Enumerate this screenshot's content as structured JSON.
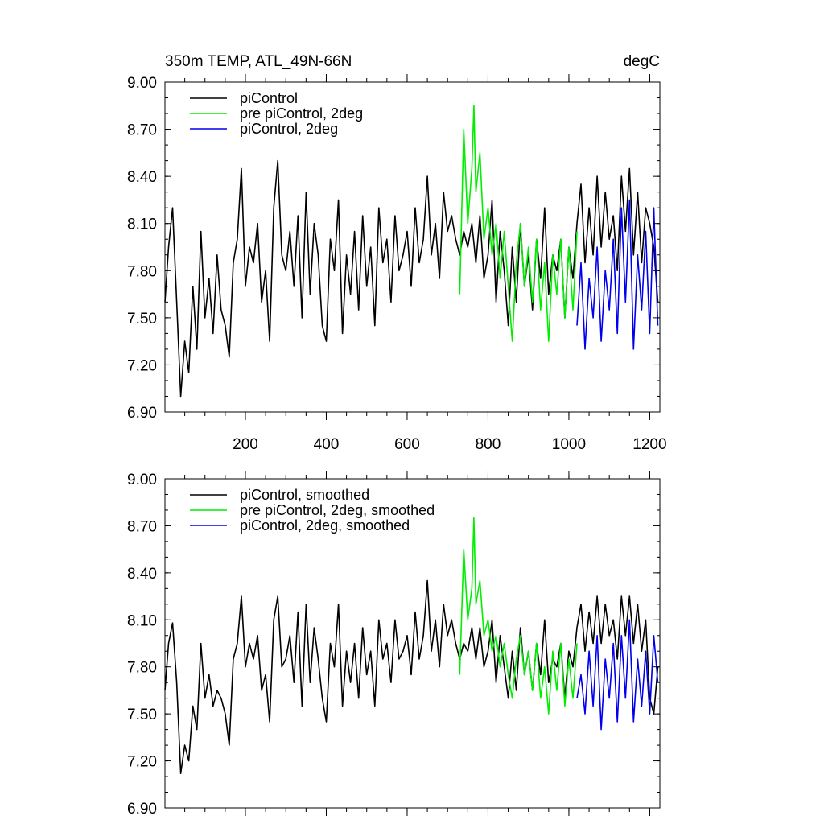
{
  "header": {
    "title": "350m TEMP, ATL_49N-66N",
    "units": "degC"
  },
  "chart_data": [
    {
      "type": "line",
      "title": "350m TEMP, ATL_49N-66N",
      "units": "degC",
      "xlim": [
        1,
        1225
      ],
      "ylim": [
        6.9,
        9.0
      ],
      "xticks": [
        200,
        400,
        600,
        800,
        1000,
        1200
      ],
      "xtick_labels": [
        "200",
        "400",
        "600",
        "800",
        "1000",
        "1200"
      ],
      "yticks": [
        6.9,
        7.2,
        7.5,
        7.8,
        8.1,
        8.4,
        8.7,
        9.0
      ],
      "ytick_labels": [
        "6.90",
        "7.20",
        "7.50",
        "7.80",
        "8.10",
        "8.40",
        "8.70",
        "9.00"
      ],
      "legend_position": "top-left",
      "series": [
        {
          "name": "piControl",
          "color": "#000000",
          "x": [
            1,
            10,
            20,
            30,
            40,
            50,
            60,
            70,
            80,
            90,
            100,
            110,
            120,
            130,
            140,
            150,
            160,
            170,
            180,
            190,
            200,
            210,
            220,
            230,
            240,
            250,
            260,
            270,
            280,
            290,
            300,
            310,
            320,
            330,
            340,
            350,
            360,
            370,
            380,
            390,
            400,
            410,
            420,
            430,
            440,
            450,
            460,
            470,
            480,
            490,
            500,
            510,
            520,
            530,
            540,
            550,
            560,
            570,
            580,
            590,
            600,
            610,
            620,
            630,
            640,
            650,
            660,
            670,
            680,
            690,
            700,
            710,
            720,
            730,
            740,
            750,
            760,
            770,
            780,
            790,
            800,
            810,
            820,
            830,
            840,
            850,
            860,
            870,
            880,
            890,
            900,
            910,
            920,
            930,
            940,
            950,
            960,
            970,
            980,
            990,
            1000,
            1010,
            1020,
            1030,
            1040,
            1050,
            1060,
            1070,
            1080,
            1090,
            1100,
            1110,
            1120,
            1130,
            1140,
            1150,
            1160,
            1170,
            1180,
            1190,
            1200,
            1210,
            1220
          ],
          "y": [
            7.6,
            7.95,
            8.2,
            7.6,
            7.0,
            7.35,
            7.15,
            7.7,
            7.3,
            8.05,
            7.5,
            7.75,
            7.4,
            7.9,
            7.55,
            7.45,
            7.25,
            7.85,
            8.0,
            8.45,
            7.7,
            7.95,
            7.85,
            8.1,
            7.6,
            7.8,
            7.35,
            8.2,
            8.5,
            7.9,
            7.8,
            8.05,
            7.7,
            8.15,
            7.5,
            8.3,
            7.65,
            8.1,
            7.9,
            7.45,
            7.35,
            8.0,
            7.8,
            8.25,
            7.4,
            7.9,
            7.65,
            8.05,
            7.55,
            8.15,
            7.7,
            7.95,
            7.45,
            8.2,
            7.85,
            8.0,
            7.6,
            8.15,
            7.8,
            7.9,
            8.05,
            7.7,
            8.2,
            7.85,
            8.0,
            8.4,
            7.9,
            8.1,
            7.75,
            8.3,
            8.05,
            8.15,
            8.0,
            7.9,
            8.05,
            7.95,
            8.1,
            7.85,
            8.15,
            7.75,
            7.9,
            8.25,
            7.6,
            8.05,
            7.8,
            7.45,
            7.95,
            7.6,
            8.1,
            7.7,
            7.9,
            7.55,
            8.0,
            7.75,
            8.2,
            7.65,
            7.9,
            7.8,
            8.0,
            7.5,
            7.95,
            7.75,
            8.1,
            8.35,
            7.85,
            8.2,
            7.9,
            8.4,
            7.95,
            8.3,
            8.0,
            8.15,
            7.8,
            8.4,
            8.05,
            8.45,
            7.9,
            8.3,
            7.85,
            8.2,
            8.1,
            7.95,
            7.6
          ]
        },
        {
          "name": "pre piControl, 2deg",
          "color": "#00ee00",
          "x": [
            730,
            740,
            750,
            760,
            765,
            770,
            780,
            790,
            800,
            810,
            820,
            830,
            840,
            850,
            860,
            870,
            880,
            890,
            900,
            910,
            920,
            930,
            940,
            950,
            960,
            970,
            980,
            990,
            1000,
            1010,
            1020
          ],
          "y": [
            7.65,
            8.7,
            8.1,
            8.45,
            8.85,
            8.3,
            8.55,
            8.0,
            8.2,
            7.9,
            8.1,
            7.75,
            8.05,
            7.7,
            7.35,
            7.85,
            8.1,
            7.7,
            7.95,
            7.6,
            8.0,
            7.55,
            7.85,
            7.35,
            7.9,
            7.65,
            8.0,
            7.5,
            7.95,
            7.55,
            8.05
          ]
        },
        {
          "name": "piControl, 2deg",
          "color": "#0000ee",
          "x": [
            1020,
            1030,
            1040,
            1050,
            1060,
            1070,
            1080,
            1090,
            1100,
            1110,
            1120,
            1130,
            1140,
            1150,
            1160,
            1170,
            1180,
            1190,
            1200,
            1210,
            1220
          ],
          "y": [
            7.45,
            7.85,
            7.3,
            7.75,
            7.5,
            7.95,
            7.35,
            7.8,
            7.55,
            8.0,
            7.4,
            8.2,
            7.6,
            8.25,
            7.3,
            7.9,
            7.55,
            8.05,
            7.4,
            8.2,
            7.45
          ]
        }
      ]
    },
    {
      "type": "line",
      "xlim": [
        1,
        1225
      ],
      "ylim": [
        6.9,
        9.0
      ],
      "yticks": [
        6.9,
        7.2,
        7.5,
        7.8,
        8.1,
        8.4,
        8.7,
        9.0
      ],
      "ytick_labels": [
        "6.90",
        "7.20",
        "7.50",
        "7.80",
        "8.10",
        "8.40",
        "8.70",
        "9.00"
      ],
      "legend_position": "top-left",
      "series": [
        {
          "name": "piControl, smoothed",
          "color": "#000000",
          "x": [
            1,
            10,
            20,
            30,
            40,
            50,
            60,
            70,
            80,
            90,
            100,
            110,
            120,
            130,
            140,
            150,
            160,
            170,
            180,
            190,
            200,
            210,
            220,
            230,
            240,
            250,
            260,
            270,
            280,
            290,
            300,
            310,
            320,
            330,
            340,
            350,
            360,
            370,
            380,
            390,
            400,
            410,
            420,
            430,
            440,
            450,
            460,
            470,
            480,
            490,
            500,
            510,
            520,
            530,
            540,
            550,
            560,
            570,
            580,
            590,
            600,
            610,
            620,
            630,
            640,
            650,
            660,
            670,
            680,
            690,
            700,
            710,
            720,
            730,
            740,
            750,
            760,
            770,
            780,
            790,
            800,
            810,
            820,
            830,
            840,
            850,
            860,
            870,
            880,
            890,
            900,
            910,
            920,
            930,
            940,
            950,
            960,
            970,
            980,
            990,
            1000,
            1010,
            1020,
            1030,
            1040,
            1050,
            1060,
            1070,
            1080,
            1090,
            1100,
            1110,
            1120,
            1130,
            1140,
            1150,
            1160,
            1170,
            1180,
            1190,
            1200,
            1210,
            1220
          ],
          "y": [
            7.65,
            7.95,
            8.08,
            7.7,
            7.12,
            7.3,
            7.2,
            7.55,
            7.4,
            7.95,
            7.6,
            7.75,
            7.55,
            7.65,
            7.6,
            7.5,
            7.3,
            7.85,
            7.95,
            8.25,
            7.8,
            7.95,
            7.85,
            8.0,
            7.65,
            7.75,
            7.45,
            8.1,
            8.25,
            7.8,
            7.85,
            8.0,
            7.7,
            8.15,
            7.55,
            8.2,
            7.7,
            8.05,
            7.85,
            7.6,
            7.45,
            7.95,
            7.8,
            8.2,
            7.55,
            7.9,
            7.7,
            7.95,
            7.6,
            8.05,
            7.75,
            7.9,
            7.55,
            8.1,
            7.85,
            7.95,
            7.7,
            8.1,
            7.85,
            7.9,
            8.0,
            7.75,
            8.15,
            7.85,
            8.0,
            8.35,
            7.9,
            8.1,
            7.8,
            8.2,
            8.0,
            8.1,
            7.95,
            7.85,
            7.95,
            7.9,
            8.05,
            7.85,
            8.05,
            7.8,
            7.9,
            8.1,
            7.7,
            8.0,
            7.8,
            7.6,
            7.9,
            7.65,
            8.05,
            7.75,
            7.9,
            7.65,
            7.95,
            7.75,
            8.1,
            7.7,
            7.85,
            7.8,
            7.95,
            7.6,
            7.9,
            7.8,
            8.05,
            8.2,
            7.9,
            8.15,
            7.95,
            8.25,
            7.95,
            8.2,
            8.0,
            8.1,
            7.85,
            8.25,
            8.0,
            8.25,
            7.95,
            8.2,
            7.9,
            8.1,
            7.6,
            7.5,
            7.8
          ]
        },
        {
          "name": "pre piControl, 2deg, smoothed",
          "color": "#00ee00",
          "x": [
            730,
            740,
            750,
            760,
            765,
            770,
            780,
            790,
            800,
            810,
            820,
            830,
            840,
            850,
            860,
            870,
            880,
            890,
            900,
            910,
            920,
            930,
            940,
            950,
            960,
            970,
            980,
            990,
            1000,
            1010,
            1020
          ],
          "y": [
            7.75,
            8.55,
            8.1,
            8.3,
            8.75,
            8.2,
            8.35,
            8.0,
            8.1,
            7.9,
            8.0,
            7.8,
            7.95,
            7.75,
            7.6,
            7.85,
            8.0,
            7.75,
            7.9,
            7.65,
            7.95,
            7.6,
            7.8,
            7.5,
            7.9,
            7.65,
            7.95,
            7.55,
            7.85,
            7.6,
            7.95
          ]
        },
        {
          "name": "piControl, 2deg, smoothed",
          "color": "#0000ee",
          "x": [
            1020,
            1030,
            1040,
            1050,
            1060,
            1070,
            1080,
            1090,
            1100,
            1110,
            1120,
            1130,
            1140,
            1150,
            1160,
            1170,
            1180,
            1190,
            1200,
            1210,
            1220
          ],
          "y": [
            7.6,
            7.75,
            7.5,
            7.9,
            7.55,
            8.0,
            7.4,
            7.85,
            7.6,
            7.95,
            7.45,
            8.0,
            7.6,
            8.1,
            7.45,
            7.85,
            7.55,
            7.9,
            7.5,
            8.0,
            7.7
          ]
        }
      ]
    }
  ]
}
